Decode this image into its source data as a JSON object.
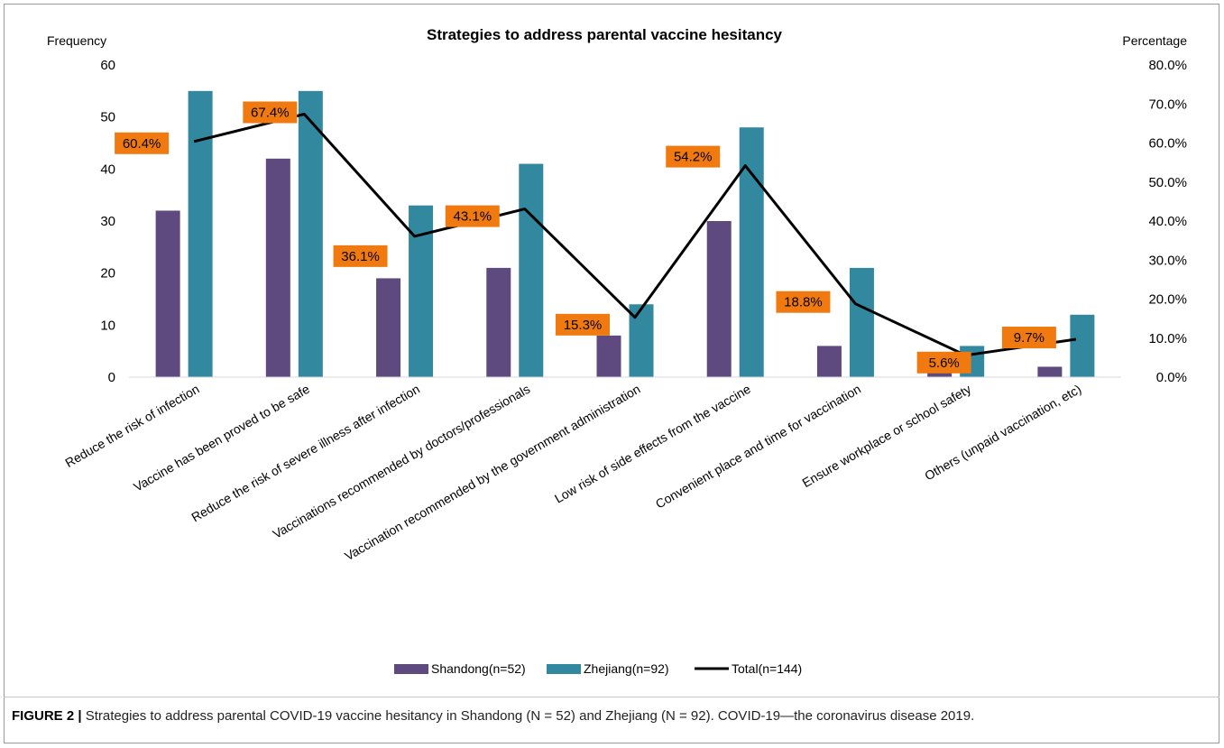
{
  "chart_data": {
    "type": "bar",
    "title": "Strategies to address  parental vaccine hesitancy",
    "ylabel_left": "Frequency",
    "ylabel_right": "Percentage",
    "ylim_left": [
      0,
      60
    ],
    "ylim_right": [
      0,
      80
    ],
    "left_ticks": [
      "0",
      "10",
      "20",
      "30",
      "40",
      "50",
      "60"
    ],
    "right_ticks": [
      "0.0%",
      "10.0%",
      "20.0%",
      "30.0%",
      "40.0%",
      "50.0%",
      "60.0%",
      "70.0%",
      "80.0%"
    ],
    "categories": [
      "Reduce the risk of infection",
      "Vaccine has been proved to be safe",
      "Reduce the risk of severe illness after infection",
      "Vaccinations recommended by doctors/professionals",
      "Vaccination recommended by the government administration",
      "Low risk of side effects from the vaccine",
      "Convenient place and time for vaccination",
      "Ensure workplace or school safety",
      "Others (unpaid vaccination, etc)"
    ],
    "series": [
      {
        "name": "Shandong(n=52)",
        "type": "bar",
        "axis": "left",
        "color": "#5e4a7f",
        "values": [
          32,
          42,
          19,
          21,
          8,
          30,
          6,
          2,
          2
        ]
      },
      {
        "name": "Zhejiang(n=92)",
        "type": "bar",
        "axis": "left",
        "color": "#31889f",
        "values": [
          55,
          55,
          33,
          41,
          14,
          48,
          21,
          6,
          12
        ]
      },
      {
        "name": "Total(n=144)",
        "type": "line",
        "axis": "right",
        "color": "#000000",
        "values": [
          60.4,
          67.4,
          36.1,
          43.1,
          15.3,
          54.2,
          18.8,
          5.6,
          9.7
        ],
        "labels": [
          "60.4%",
          "67.4%",
          "36.1%",
          "43.1%",
          "15.3%",
          "54.2%",
          "18.8%",
          "5.6%",
          "9.7%"
        ],
        "label_color": "#f07a10"
      }
    ],
    "legend_position": "bottom",
    "grid": false
  },
  "caption": {
    "label": "FIGURE 2 |",
    "text": " Strategies to address parental COVID-19 vaccine hesitancy in Shandong (N = 52) and Zhejiang (N = 92). COVID-19—the coronavirus disease 2019."
  }
}
